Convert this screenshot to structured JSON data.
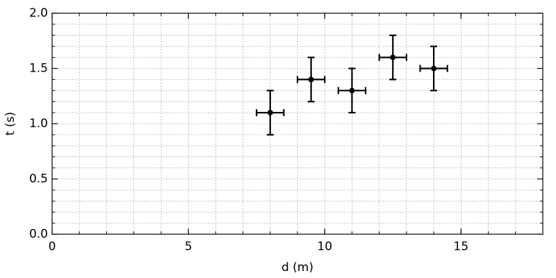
{
  "chart_data": {
    "type": "scatter",
    "xlabel": "d (m)",
    "ylabel": "t (s)",
    "xlim": [
      0,
      18
    ],
    "ylim": [
      0,
      2
    ],
    "xticks": [
      0,
      5,
      10,
      15
    ],
    "yticks": [
      {
        "value": 0,
        "label": "0.0"
      },
      0.5,
      {
        "value": 1,
        "label": "1.0"
      },
      1.5,
      {
        "value": 2,
        "label": "2.0"
      }
    ],
    "xminorticks": [
      0,
      1,
      2,
      3,
      4,
      5,
      6,
      7,
      8,
      9,
      10,
      11,
      12,
      13,
      14,
      15,
      16,
      17,
      18
    ],
    "yminorticks": [
      0,
      0.1,
      0.2,
      0.3,
      0.4,
      0.5,
      0.6,
      0.7,
      0.8,
      0.9,
      1,
      1.1,
      1.2,
      1.3,
      1.4,
      1.5,
      1.6,
      1.7,
      1.8,
      1.9,
      2
    ],
    "grid": true,
    "series": [
      {
        "color": "#000000",
        "x": [
          8,
          9.5,
          11,
          12.5,
          14
        ],
        "values": [
          1.1,
          1.4,
          1.3,
          1.6,
          1.5
        ],
        "xerr": [
          0.5,
          0.5,
          0.5,
          0.5,
          0.5
        ],
        "yerr": [
          0.2,
          0.2,
          0.2,
          0.2,
          0.2
        ]
      }
    ]
  }
}
